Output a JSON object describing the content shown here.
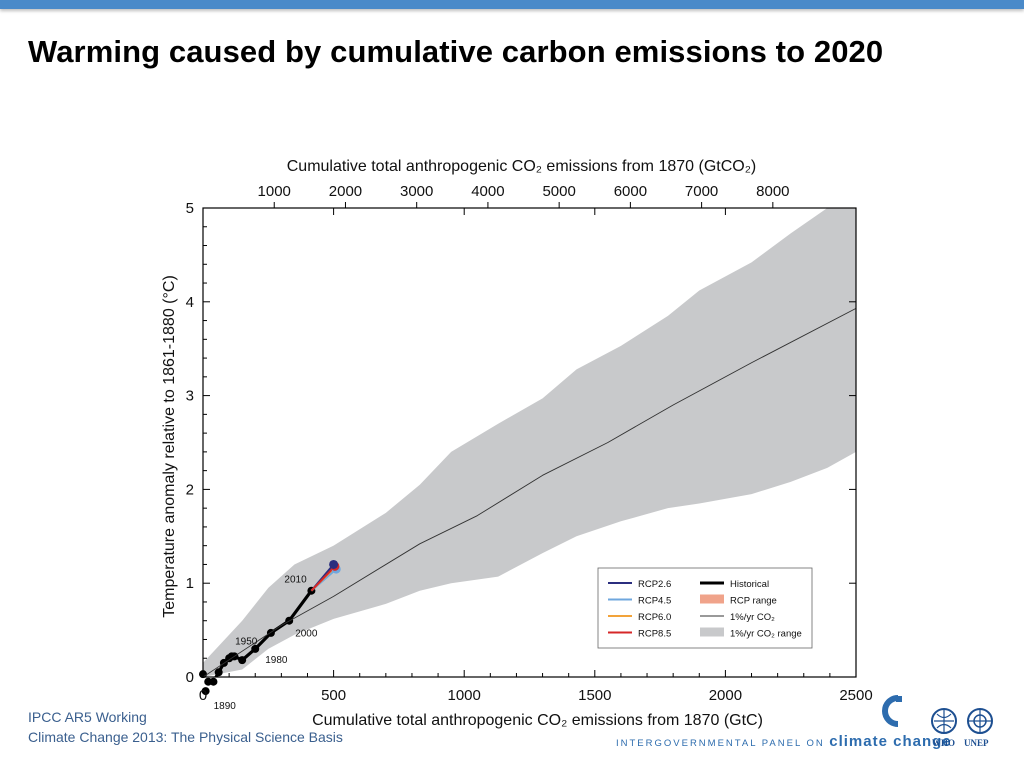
{
  "slide": {
    "title": "Warming caused by cumulative carbon emissions to 2020",
    "footer_line1": "IPCC AR5 Working",
    "footer_line2": "Climate Change 2013: The Physical Science Basis",
    "ipcc_text_small": "INTERGOVERNMENTAL PANEL ON",
    "ipcc_text_big": "climate change",
    "who_label": "WHO",
    "unep_label": "UNEP",
    "accent_color": "#4a8ac9",
    "logo_color": "#2d6cae"
  },
  "chart_data": {
    "type": "line",
    "title": "",
    "xlabel": "Cumulative total anthropogenic CO₂ emissions from 1870 (GtC)",
    "ylabel": "Temperature anomaly relative to 1861-1880 (°C)",
    "x2label": "Cumulative total anthropogenic CO₂ emissions from 1870 (GtCO₂)",
    "xlim": [
      0,
      2500
    ],
    "ylim": [
      0,
      5
    ],
    "x_ticks": [
      "0",
      "500",
      "1000",
      "1500",
      "2000",
      "2500"
    ],
    "y_ticks": [
      "0",
      "1",
      "2",
      "3",
      "4",
      "5"
    ],
    "x2_ticks": [
      "1000",
      "2000",
      "3000",
      "4000",
      "5000",
      "6000",
      "7000",
      "8000"
    ],
    "grid": false,
    "legend_position": "bottom-right",
    "series": [
      {
        "name": "Historical",
        "color": "#000000",
        "x": [
          0,
          10,
          20,
          40,
          60,
          80,
          100,
          110,
          120,
          150,
          200,
          260,
          330,
          415
        ],
        "y": [
          0.03,
          -0.15,
          -0.05,
          -0.05,
          0.05,
          0.15,
          0.2,
          0.22,
          0.22,
          0.18,
          0.3,
          0.47,
          0.6,
          0.92
        ]
      },
      {
        "name": "RCP2.6",
        "color": "#2b2e7f",
        "x": [
          415,
          500
        ],
        "y": [
          0.92,
          1.2
        ]
      },
      {
        "name": "RCP4.5",
        "color": "#6fa7de",
        "x": [
          415,
          510
        ],
        "y": [
          0.92,
          1.15
        ]
      },
      {
        "name": "RCP6.0",
        "color": "#f2a33a",
        "x": [
          415,
          505
        ],
        "y": [
          0.92,
          1.17
        ]
      },
      {
        "name": "RCP8.5",
        "color": "#d62728",
        "x": [
          415,
          505
        ],
        "y": [
          0.92,
          1.18
        ]
      },
      {
        "name": "1%/yr CO₂",
        "color": "#333333",
        "x": [
          0,
          300,
          500,
          830,
          1050,
          1300,
          1550,
          1800,
          2100,
          2500
        ],
        "y": [
          0.0,
          0.55,
          0.86,
          1.42,
          1.72,
          2.15,
          2.5,
          2.9,
          3.35,
          3.93
        ]
      }
    ],
    "ranges": [
      {
        "name": "1%/yr CO₂ range",
        "color": "#c8c9cb",
        "x": [
          0,
          150,
          250,
          350,
          500,
          700,
          830,
          950,
          1130,
          1300,
          1430,
          1600,
          1780,
          1900,
          2100,
          2250,
          2390,
          2500
        ],
        "upper": [
          0.15,
          0.6,
          0.95,
          1.2,
          1.4,
          1.75,
          2.05,
          2.4,
          2.7,
          2.97,
          3.28,
          3.53,
          3.85,
          4.12,
          4.42,
          4.73,
          5.0,
          5.0
        ],
        "lower": [
          -0.05,
          0.08,
          0.3,
          0.45,
          0.62,
          0.78,
          0.92,
          1.0,
          1.07,
          1.32,
          1.5,
          1.66,
          1.8,
          1.85,
          1.95,
          2.08,
          2.23,
          2.4
        ]
      },
      {
        "name": "RCP range",
        "color": "#f0a38a",
        "x": [
          415,
          500,
          510
        ],
        "upper": [
          0.92,
          1.2,
          1.2
        ],
        "lower": [
          0.92,
          1.14,
          1.14
        ]
      }
    ],
    "end_markers": [
      {
        "series": "RCP4.5",
        "x": 510,
        "y": 1.15,
        "color": "#6fa7de"
      },
      {
        "series": "RCP8.5",
        "x": 505,
        "y": 1.18,
        "color": "#d62728"
      },
      {
        "series": "RCP2.6",
        "x": 500,
        "y": 1.2,
        "color": "#2b2e7f"
      }
    ],
    "point_labels": [
      {
        "text": "1890",
        "x": 10,
        "y": -0.15
      },
      {
        "text": "1950",
        "x": 100,
        "y": 0.22
      },
      {
        "text": "1980",
        "x": 200,
        "y": 0.3
      },
      {
        "text": "2000",
        "x": 330,
        "y": 0.6
      },
      {
        "text": "2010",
        "x": 415,
        "y": 0.92
      }
    ],
    "legend": [
      {
        "label": "RCP2.6",
        "kind": "line",
        "color": "#2b2e7f"
      },
      {
        "label": "RCP4.5",
        "kind": "line",
        "color": "#6fa7de"
      },
      {
        "label": "RCP6.0",
        "kind": "line",
        "color": "#f2a33a"
      },
      {
        "label": "RCP8.5",
        "kind": "line",
        "color": "#d62728"
      },
      {
        "label": "Historical",
        "kind": "thick-line",
        "color": "#000000"
      },
      {
        "label": "RCP range",
        "kind": "patch",
        "color": "#f0a38a"
      },
      {
        "label": "1%/yr CO₂",
        "kind": "thin-line",
        "color": "#333333"
      },
      {
        "label": "1%/yr CO₂ range",
        "kind": "patch",
        "color": "#c8c9cb"
      }
    ]
  }
}
